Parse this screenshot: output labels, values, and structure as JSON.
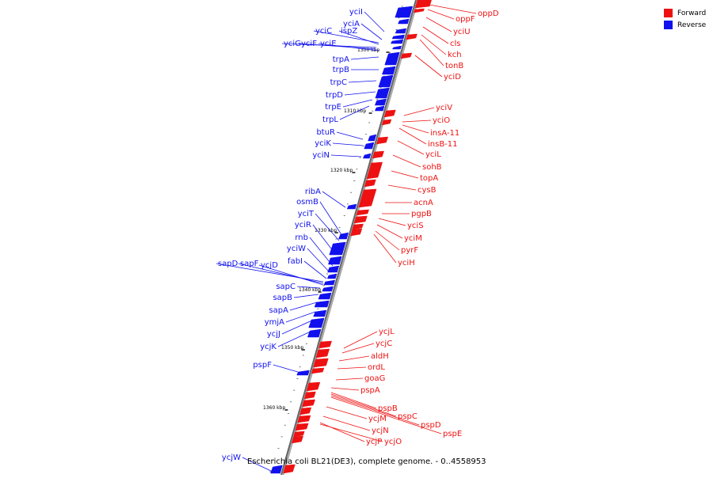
{
  "caption": "Escherichia coli BL21(DE3), complete genome. - 0..4558953",
  "legend": [
    {
      "label": "Forward",
      "color": "#ee1111"
    },
    {
      "label": "Reverse",
      "color": "#1111ee"
    }
  ],
  "colors": {
    "forward": "#ee1111",
    "reverse": "#1111ee",
    "axis": "#888888"
  },
  "ticks": [
    "1300 kbp",
    "1310 kbp",
    "1320 kbp",
    "1330 kbp",
    "1340 kbp",
    "1350 kbp",
    "1360 kbp"
  ],
  "genes": {
    "reverse": [
      "yciI",
      "yciA",
      "yciC",
      "ispZ",
      "yciG",
      "yciF",
      "yciE",
      "trpA",
      "trpB",
      "trpC",
      "trpD",
      "trpE",
      "trpL",
      "btuR",
      "yciK",
      "yciN",
      "ribA",
      "osmB",
      "yciT",
      "yciR",
      "rnb",
      "yciW",
      "fabI",
      "sapD",
      "sapF",
      "ycjD",
      "sapC",
      "sapB",
      "sapA",
      "ymjA",
      "ycjJ",
      "ycjK",
      "pspF",
      "ycjW"
    ],
    "forward": [
      "oppD",
      "oppF",
      "yciU",
      "cls",
      "kch",
      "tonB",
      "yciD",
      "yciV",
      "yciO",
      "insA-11",
      "insB-11",
      "yciL",
      "sohB",
      "topA",
      "cysB",
      "acnA",
      "pgpB",
      "yciS",
      "yciM",
      "pyrF",
      "yciH",
      "ycjL",
      "ycjC",
      "aldH",
      "ordL",
      "goaG",
      "pspA",
      "pspB",
      "pspC",
      "ycjM",
      "pspD",
      "ycjN",
      "pspE",
      "ycjP",
      "ycjO"
    ]
  }
}
